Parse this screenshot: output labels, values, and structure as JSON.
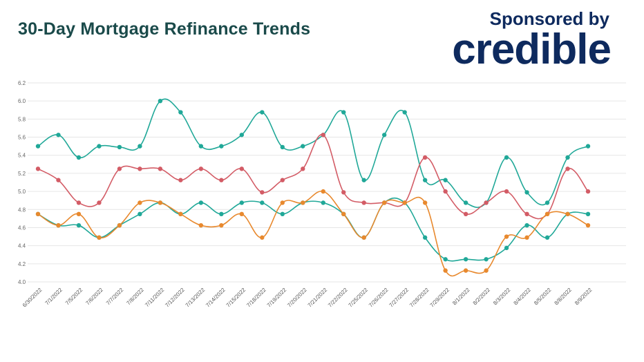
{
  "header": {
    "title": "30-Day Mortgage Refinance Trends",
    "sponsor_text": "Sponsored by",
    "sponsor_logo": "credible"
  },
  "colors": {
    "series": [
      "#20a898",
      "#d35c66",
      "#e8892e"
    ],
    "grid": "#e6e6e6",
    "title": "#1a4a4a",
    "sponsor": "#0e2a5e"
  },
  "chart_data": {
    "type": "line",
    "title": "30-Day Mortgage Refinance Trends",
    "xlabel": "",
    "ylabel": "",
    "ylim": [
      4.0,
      6.2
    ],
    "yticks": [
      "6.2",
      "6.0",
      "5.8",
      "5.6",
      "5.4",
      "5.2",
      "5.0",
      "4.8",
      "4.6",
      "4.4",
      "4.2",
      "4.0"
    ],
    "grid": true,
    "x": [
      "6/30/2022",
      "7/1/2022",
      "7/5/2022",
      "7/6/2022",
      "7/7/2022",
      "7/8/2022",
      "7/11/2022",
      "7/12/2022",
      "7/13/2022",
      "7/14/2022",
      "7/15/2022",
      "7/18/2022",
      "7/19/2022",
      "7/20/2022",
      "7/21/2022",
      "7/22/2022",
      "7/25/2022",
      "7/26/2022",
      "7/27/2022",
      "7/28/2022",
      "7/29/2022",
      "8/1/2022",
      "8/2/2022",
      "8/3/2022",
      "8/4/2022",
      "8/5/2022",
      "8/8/2022",
      "8/9/2022"
    ],
    "series": [
      {
        "values": [
          5.5,
          5.625,
          5.375,
          5.5,
          5.49,
          5.5,
          6.0,
          5.875,
          5.5,
          5.5,
          5.625,
          5.875,
          5.49,
          5.5,
          5.625,
          5.875,
          5.125,
          5.625,
          5.875,
          5.125,
          5.125,
          4.875,
          4.875,
          5.375,
          4.99,
          4.875,
          5.375,
          5.5
        ]
      },
      {
        "values": [
          5.25,
          5.125,
          4.875,
          4.875,
          5.25,
          5.25,
          5.25,
          5.125,
          5.25,
          5.125,
          5.25,
          4.99,
          5.125,
          5.25,
          5.625,
          4.99,
          4.875,
          4.875,
          4.875,
          5.375,
          5.0,
          4.75,
          4.875,
          5.0,
          4.75,
          4.75,
          5.25,
          5.0
        ]
      },
      {
        "values": [
          4.75,
          4.625,
          4.75,
          4.49,
          4.625,
          4.875,
          4.875,
          4.75,
          4.625,
          4.625,
          4.75,
          4.49,
          4.875,
          4.875,
          5.0,
          4.75,
          4.49,
          4.875,
          4.875,
          4.875,
          4.125,
          4.125,
          4.125,
          4.5,
          4.49,
          4.75,
          4.75,
          4.625
        ]
      },
      {
        "values": [
          4.75,
          4.625,
          4.625,
          4.49,
          4.625,
          4.75,
          4.875,
          4.75,
          4.875,
          4.75,
          4.875,
          4.875,
          4.75,
          4.875,
          4.875,
          4.75,
          4.49,
          4.875,
          4.875,
          4.49,
          4.25,
          4.25,
          4.25,
          4.375,
          4.625,
          4.49,
          4.75,
          4.75
        ]
      }
    ],
    "series_colors": [
      "#20a898",
      "#d35c66",
      "#e8892e",
      "#20a898"
    ]
  }
}
